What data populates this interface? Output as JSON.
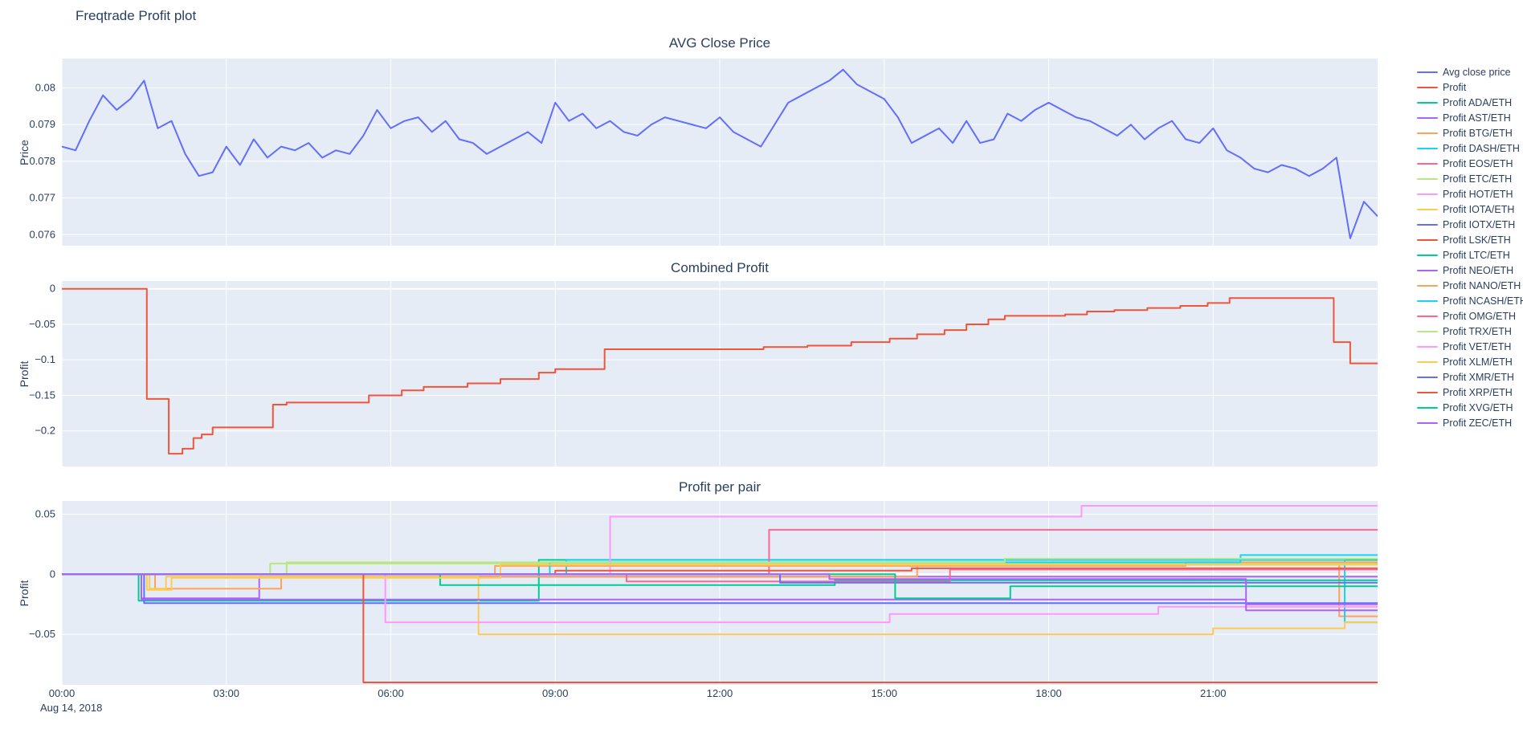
{
  "page_title": "Freqtrade Profit plot",
  "x_axis": {
    "range": [
      0,
      24
    ],
    "tick_hours": [
      0,
      3,
      6,
      9,
      12,
      15,
      18,
      21
    ],
    "tick_labels": [
      "00:00",
      "03:00",
      "06:00",
      "09:00",
      "12:00",
      "15:00",
      "18:00",
      "21:00"
    ],
    "date_label": "Aug 14, 2018"
  },
  "colors": {
    "plot_background": "#e5ecf6",
    "grid": "#ffffff",
    "text": "#2a3f5f"
  },
  "legend": {
    "items": [
      {
        "label": "Avg close price",
        "color": "#636efa"
      },
      {
        "label": "Profit",
        "color": "#ef553b"
      },
      {
        "label": "Profit ADA/ETH",
        "color": "#00cc96"
      },
      {
        "label": "Profit AST/ETH",
        "color": "#ab63fa"
      },
      {
        "label": "Profit BTG/ETH",
        "color": "#ffa15a"
      },
      {
        "label": "Profit DASH/ETH",
        "color": "#19d3f3"
      },
      {
        "label": "Profit EOS/ETH",
        "color": "#ff6692"
      },
      {
        "label": "Profit ETC/ETH",
        "color": "#b6e880"
      },
      {
        "label": "Profit HOT/ETH",
        "color": "#ff97ff"
      },
      {
        "label": "Profit IOTA/ETH",
        "color": "#fecb52"
      },
      {
        "label": "Profit IOTX/ETH",
        "color": "#636efa"
      },
      {
        "label": "Profit LSK/ETH",
        "color": "#ef553b"
      },
      {
        "label": "Profit LTC/ETH",
        "color": "#00cc96"
      },
      {
        "label": "Profit NEO/ETH",
        "color": "#ab63fa"
      },
      {
        "label": "Profit NANO/ETH",
        "color": "#ffa15a"
      },
      {
        "label": "Profit NCASH/ETH",
        "color": "#19d3f3"
      },
      {
        "label": "Profit OMG/ETH",
        "color": "#ff6692"
      },
      {
        "label": "Profit TRX/ETH",
        "color": "#b6e880"
      },
      {
        "label": "Profit VET/ETH",
        "color": "#ff97ff"
      },
      {
        "label": "Profit XLM/ETH",
        "color": "#fecb52"
      },
      {
        "label": "Profit XMR/ETH",
        "color": "#636efa"
      },
      {
        "label": "Profit XRP/ETH",
        "color": "#ef553b"
      },
      {
        "label": "Profit XVG/ETH",
        "color": "#00cc96"
      },
      {
        "label": "Profit ZEC/ETH",
        "color": "#ab63fa"
      }
    ]
  },
  "chart_data": [
    {
      "type": "line",
      "title": "AVG Close Price",
      "ylabel": "Price",
      "ylim": [
        0.0757,
        0.0808
      ],
      "yticks": [
        0.08,
        0.079,
        0.078,
        0.077,
        0.076
      ],
      "ytick_labels": [
        "0.08",
        "0.079",
        "0.078",
        "0.077",
        "0.076"
      ],
      "series": [
        {
          "name": "Avg close price",
          "color": "#636efa",
          "shape": "linear",
          "y": [
            0.0784,
            0.0783,
            0.0791,
            0.0798,
            0.0794,
            0.0797,
            0.0802,
            0.0789,
            0.0791,
            0.0782,
            0.0776,
            0.0777,
            0.0784,
            0.0779,
            0.0786,
            0.0781,
            0.0784,
            0.0783,
            0.0785,
            0.0781,
            0.0783,
            0.0782,
            0.0787,
            0.0794,
            0.0789,
            0.0791,
            0.0792,
            0.0788,
            0.0791,
            0.0786,
            0.0785,
            0.0782,
            0.0784,
            0.0786,
            0.0788,
            0.0785,
            0.0796,
            0.0791,
            0.0793,
            0.0789,
            0.0791,
            0.0788,
            0.0787,
            0.079,
            0.0792,
            0.0791,
            0.079,
            0.0789,
            0.0792,
            0.0788,
            0.0786,
            0.0784,
            0.079,
            0.0796,
            0.0798,
            0.08,
            0.0802,
            0.0805,
            0.0801,
            0.0799,
            0.0797,
            0.0792,
            0.0785,
            0.0787,
            0.0789,
            0.0785,
            0.0791,
            0.0785,
            0.0786,
            0.0793,
            0.0791,
            0.0794,
            0.0796,
            0.0794,
            0.0792,
            0.0791,
            0.0789,
            0.0787,
            0.079,
            0.0786,
            0.0789,
            0.0791,
            0.0786,
            0.0785,
            0.0789,
            0.0783,
            0.0781,
            0.0778,
            0.0777,
            0.0779,
            0.0778,
            0.0776,
            0.0778,
            0.0781,
            0.0759,
            0.0769,
            0.0765
          ]
        }
      ]
    },
    {
      "type": "line",
      "title": "Combined Profit",
      "ylabel": "Profit",
      "ylim": [
        -0.25,
        0.011
      ],
      "yticks": [
        0,
        -0.05,
        -0.1,
        -0.15,
        -0.2
      ],
      "ytick_labels": [
        "0",
        "−0.05",
        "−0.1",
        "−0.15",
        "−0.2"
      ],
      "series": [
        {
          "name": "Profit",
          "color": "#ef553b",
          "shape": "hv",
          "x": [
            0,
            1.55,
            1.95,
            2.2,
            2.4,
            2.55,
            2.75,
            3.85,
            4.1,
            5.6,
            6.2,
            6.6,
            7.4,
            8.0,
            8.7,
            9.0,
            9.9,
            12.8,
            13.6,
            14.4,
            15.1,
            15.6,
            16.1,
            16.5,
            16.9,
            17.2,
            18.3,
            18.7,
            19.2,
            19.8,
            20.4,
            20.9,
            21.3,
            23.2,
            23.5,
            24
          ],
          "y": [
            0,
            -0.155,
            -0.232,
            -0.225,
            -0.21,
            -0.205,
            -0.195,
            -0.163,
            -0.16,
            -0.15,
            -0.143,
            -0.138,
            -0.133,
            -0.127,
            -0.118,
            -0.113,
            -0.085,
            -0.082,
            -0.08,
            -0.075,
            -0.07,
            -0.064,
            -0.058,
            -0.05,
            -0.043,
            -0.038,
            -0.036,
            -0.032,
            -0.03,
            -0.027,
            -0.024,
            -0.02,
            -0.013,
            -0.075,
            -0.105,
            -0.105
          ]
        }
      ]
    },
    {
      "type": "line",
      "title": "Profit per pair",
      "ylabel": "Profit",
      "ylim": [
        -0.092,
        0.061
      ],
      "yticks": [
        0.05,
        0,
        -0.05
      ],
      "ytick_labels": [
        "0.05",
        "0",
        "−0.05"
      ],
      "series": [
        {
          "name": "Profit ADA/ETH",
          "color": "#00cc96",
          "shape": "hv",
          "x": [
            0,
            1.4,
            8.7,
            24
          ],
          "y": [
            0,
            -0.022,
            0.012,
            0.012
          ]
        },
        {
          "name": "Profit AST/ETH",
          "color": "#ab63fa",
          "shape": "hv",
          "x": [
            0,
            1.45,
            3.6,
            24
          ],
          "y": [
            0,
            -0.02,
            -0.002,
            -0.002
          ]
        },
        {
          "name": "Profit BTG/ETH",
          "color": "#ffa15a",
          "shape": "hv",
          "x": [
            0,
            1.7,
            4.0,
            15.6,
            23.3,
            24
          ],
          "y": [
            0,
            -0.012,
            -0.002,
            0.008,
            -0.035,
            -0.035
          ]
        },
        {
          "name": "Profit DASH/ETH",
          "color": "#19d3f3",
          "shape": "hv",
          "x": [
            0,
            9.2,
            23.4,
            24
          ],
          "y": [
            0,
            0.012,
            -0.04,
            -0.04
          ]
        },
        {
          "name": "Profit EOS/ETH",
          "color": "#ff6692",
          "shape": "hv",
          "x": [
            0,
            12.9,
            24
          ],
          "y": [
            0,
            0.037,
            0.037
          ]
        },
        {
          "name": "Profit ETC/ETH",
          "color": "#b6e880",
          "shape": "hv",
          "x": [
            0,
            3.8,
            24
          ],
          "y": [
            0,
            0.009,
            0.009
          ]
        },
        {
          "name": "Profit HOT/ETH",
          "color": "#ff97ff",
          "shape": "hv",
          "x": [
            0,
            10.0,
            18.6,
            24
          ],
          "y": [
            0,
            0.048,
            0.057,
            0.057
          ]
        },
        {
          "name": "Profit IOTA/ETH",
          "color": "#fecb52",
          "shape": "hv",
          "x": [
            0,
            1.6,
            1.9,
            7.6,
            21.0,
            23.4,
            24
          ],
          "y": [
            0,
            -0.012,
            -0.002,
            -0.05,
            -0.045,
            -0.04,
            -0.04
          ]
        },
        {
          "name": "Profit IOTX/ETH",
          "color": "#636efa",
          "shape": "hv",
          "x": [
            0,
            1.5,
            24
          ],
          "y": [
            0,
            -0.024,
            -0.024
          ]
        },
        {
          "name": "Profit LSK/ETH",
          "color": "#ef553b",
          "shape": "hv",
          "x": [
            0,
            9.0,
            15.5,
            24
          ],
          "y": [
            0,
            0.003,
            0.005,
            0.005
          ]
        },
        {
          "name": "Profit LTC/ETH",
          "color": "#00cc96",
          "shape": "hv",
          "x": [
            0,
            6.9,
            14.1,
            24
          ],
          "y": [
            0,
            -0.009,
            -0.005,
            -0.005
          ]
        },
        {
          "name": "Profit NEO/ETH",
          "color": "#ab63fa",
          "shape": "hv",
          "x": [
            0,
            1.45,
            21.6,
            24
          ],
          "y": [
            0,
            -0.021,
            -0.025,
            -0.025
          ]
        },
        {
          "name": "Profit NANO/ETH",
          "color": "#ffa15a",
          "shape": "hv",
          "x": [
            0,
            7.9,
            20.5,
            24
          ],
          "y": [
            0,
            0.007,
            0.01,
            0.01
          ]
        },
        {
          "name": "Profit NCASH/ETH",
          "color": "#19d3f3",
          "shape": "hv",
          "x": [
            0,
            8.9,
            21.5,
            24
          ],
          "y": [
            0,
            0.01,
            0.016,
            0.016
          ]
        },
        {
          "name": "Profit OMG/ETH",
          "color": "#ff6692",
          "shape": "hv",
          "x": [
            0,
            10.3,
            16.2,
            24
          ],
          "y": [
            0,
            -0.006,
            0.004,
            0.004
          ]
        },
        {
          "name": "Profit TRX/ETH",
          "color": "#b6e880",
          "shape": "hv",
          "x": [
            0,
            4.1,
            17.2,
            24
          ],
          "y": [
            0,
            0.01,
            0.013,
            0.013
          ]
        },
        {
          "name": "Profit VET/ETH",
          "color": "#ff97ff",
          "shape": "hv",
          "x": [
            0,
            5.9,
            15.1,
            20.0,
            24
          ],
          "y": [
            0,
            -0.04,
            -0.033,
            -0.027,
            -0.027
          ]
        },
        {
          "name": "Profit XLM/ETH",
          "color": "#fecb52",
          "shape": "hv",
          "x": [
            0,
            1.55,
            2.0,
            8.0,
            24
          ],
          "y": [
            0,
            -0.013,
            -0.003,
            0.008,
            0.008
          ]
        },
        {
          "name": "Profit XMR/ETH",
          "color": "#636efa",
          "shape": "hv",
          "x": [
            0,
            13.1,
            24
          ],
          "y": [
            0,
            -0.007,
            -0.007
          ]
        },
        {
          "name": "Profit XRP/ETH",
          "color": "#ef553b",
          "shape": "hv",
          "x": [
            0,
            5.5,
            24
          ],
          "y": [
            0,
            -0.09,
            -0.09
          ]
        },
        {
          "name": "Profit XVG/ETH",
          "color": "#00cc96",
          "shape": "hv",
          "x": [
            0,
            15.2,
            17.3,
            24
          ],
          "y": [
            0,
            -0.02,
            -0.01,
            -0.01
          ]
        },
        {
          "name": "Profit ZEC/ETH",
          "color": "#ab63fa",
          "shape": "hv",
          "x": [
            0,
            14.0,
            21.6,
            24
          ],
          "y": [
            0,
            -0.004,
            -0.03,
            -0.03
          ]
        }
      ]
    }
  ]
}
